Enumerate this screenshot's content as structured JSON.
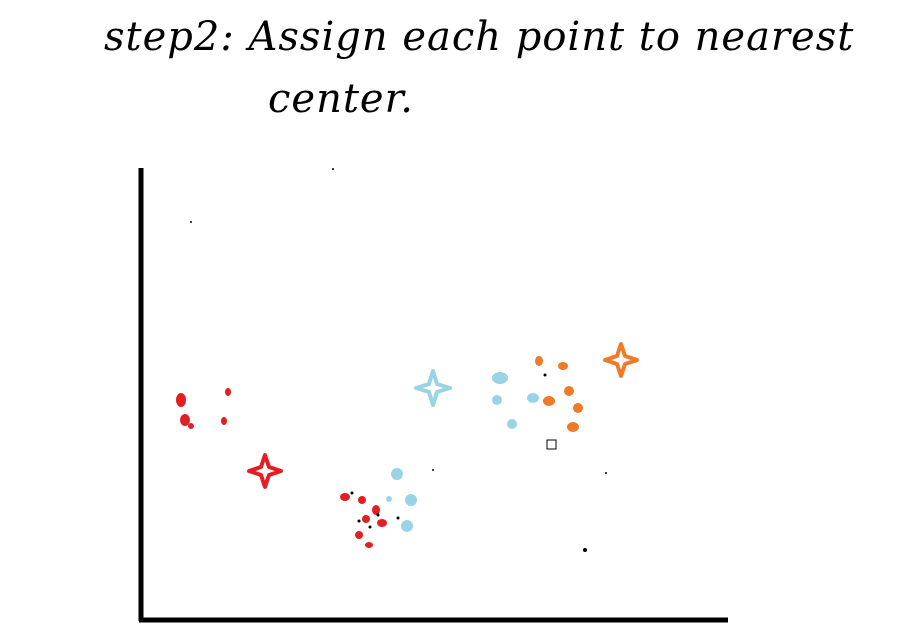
{
  "title": {
    "line1": "step2: Assign each point to nearest",
    "line2": "center."
  },
  "colors": {
    "red": "#e31e24",
    "blue": "#99d4e6",
    "orange": "#f07a28",
    "axis": "#000000"
  }
}
